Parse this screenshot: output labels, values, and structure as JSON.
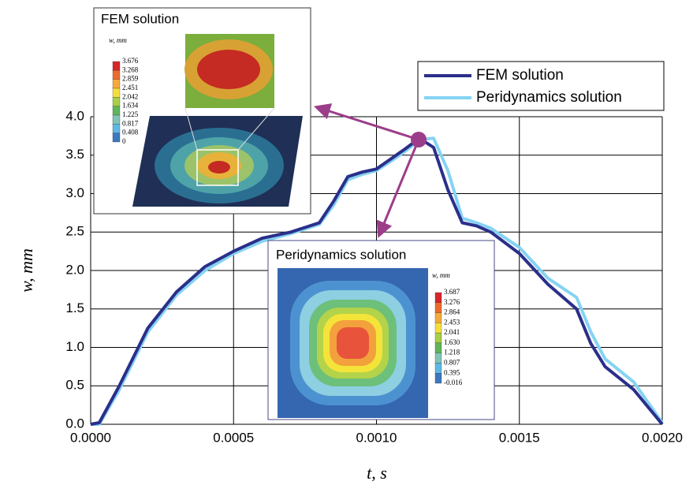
{
  "chart_data": {
    "type": "line",
    "x_label": "t, s",
    "y_label": "w, mm",
    "x": [
      0,
      3e-05,
      0.0001,
      0.0002,
      0.0003,
      0.0004,
      0.0005,
      0.0006,
      0.0007,
      0.0008,
      0.00085,
      0.0009,
      0.00095,
      0.001,
      0.00105,
      0.0011,
      0.00115,
      0.0012,
      0.00125,
      0.0013,
      0.00135,
      0.0014,
      0.0015,
      0.0016,
      0.0017,
      0.00175,
      0.0018,
      0.0019,
      0.002
    ],
    "series": [
      {
        "name": "FEM solution",
        "color": "#2b2f8a",
        "values": [
          0,
          0.02,
          0.5,
          1.25,
          1.72,
          2.05,
          2.25,
          2.42,
          2.5,
          2.62,
          2.9,
          3.22,
          3.28,
          3.32,
          3.45,
          3.58,
          3.72,
          3.6,
          3.05,
          2.62,
          2.58,
          2.5,
          2.22,
          1.82,
          1.5,
          1.05,
          0.75,
          0.45,
          0
        ]
      },
      {
        "name": "Peridynamics solution",
        "color": "#85d3f2",
        "values": [
          0,
          0,
          0.45,
          1.2,
          1.68,
          2.0,
          2.22,
          2.38,
          2.48,
          2.6,
          2.85,
          3.18,
          3.25,
          3.3,
          3.42,
          3.55,
          3.7,
          3.72,
          3.3,
          2.68,
          2.62,
          2.55,
          2.3,
          1.9,
          1.65,
          1.2,
          0.85,
          0.55,
          0.02
        ]
      }
    ],
    "xlim": [
      0,
      0.002
    ],
    "xticks": [
      {
        "value": 0,
        "label": "0.0000"
      },
      0.0005,
      {
        "value": 0.001,
        "label": "0.0010"
      },
      0.0015,
      {
        "value": 0.002,
        "label": "0.0020"
      }
    ],
    "ylim": [
      0,
      4
    ],
    "yticks": [
      {
        "value": 0,
        "label": "0.0"
      },
      0.5,
      {
        "value": 1,
        "label": "1.0"
      },
      1.5,
      {
        "value": 2,
        "label": "2.0"
      },
      2.5,
      {
        "value": 3,
        "label": "3.0"
      },
      3.5,
      {
        "value": 4,
        "label": "4.0"
      }
    ],
    "grid": true,
    "legend": "upper right"
  },
  "insets": [
    {
      "title": "FEM solution",
      "legend_title": "w, mm",
      "levels": [
        "3.676",
        "3.268",
        "2.859",
        "2.451",
        "2.042",
        "1.634",
        "1.225",
        "0.817",
        "0.408",
        "0"
      ]
    },
    {
      "title": "Peridynamics solution",
      "legend_title": "w, mm",
      "levels": [
        "3.687",
        "3.276",
        "2.864",
        "2.453",
        "2.041",
        "1.630",
        "1.218",
        "0.807",
        "0.395",
        "-0.016"
      ]
    }
  ]
}
